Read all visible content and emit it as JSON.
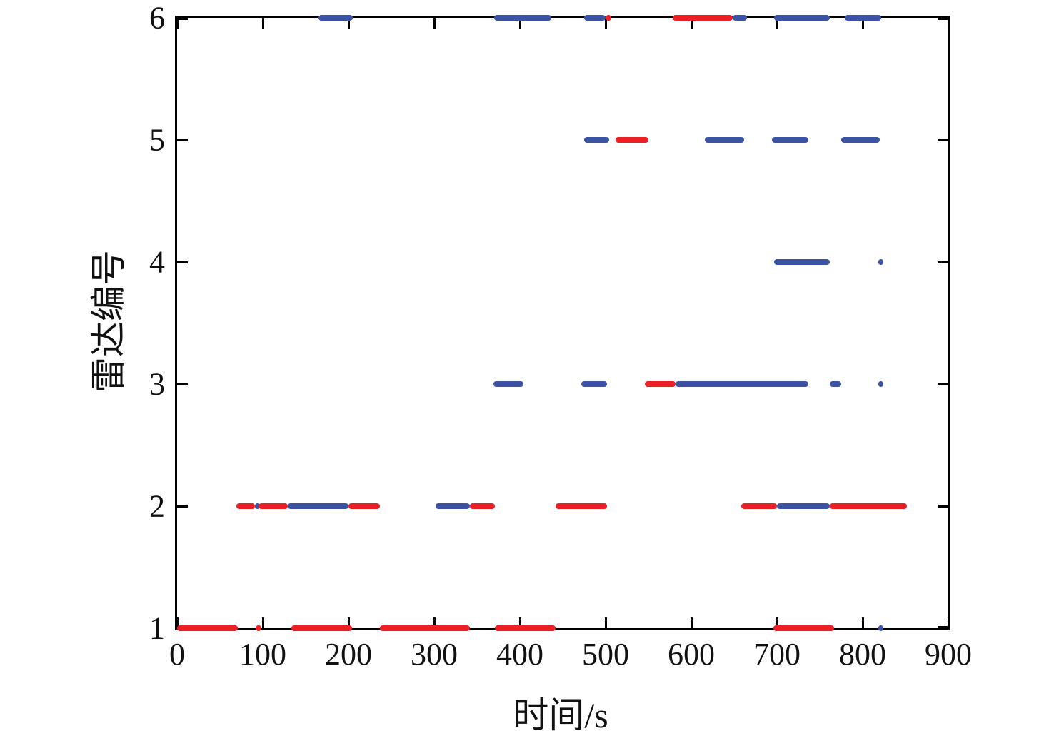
{
  "chart_data": {
    "type": "scatter",
    "title": "",
    "xlabel": "时间/s",
    "ylabel": "雷达编号",
    "xlim": [
      0,
      900
    ],
    "ylim": [
      1,
      6
    ],
    "x_ticks": [
      0,
      100,
      200,
      300,
      400,
      500,
      600,
      700,
      800,
      900
    ],
    "y_ticks": [
      1,
      2,
      3,
      4,
      5,
      6
    ],
    "grid": false,
    "legend": "none",
    "colors": {
      "blue": "#3a53a4",
      "red": "#ec2024"
    },
    "series_note": "horizontal occupancy segments per radar id; color = blue or red",
    "segments": [
      {
        "y": 6,
        "start": 165,
        "end": 205,
        "color": "blue"
      },
      {
        "y": 6,
        "start": 370,
        "end": 437,
        "color": "blue"
      },
      {
        "y": 6,
        "start": 475,
        "end": 500,
        "color": "blue"
      },
      {
        "y": 6,
        "start": 500,
        "end": 507,
        "color": "red"
      },
      {
        "y": 6,
        "start": 578,
        "end": 648,
        "color": "red"
      },
      {
        "y": 6,
        "start": 648,
        "end": 665,
        "color": "blue"
      },
      {
        "y": 6,
        "start": 697,
        "end": 762,
        "color": "blue"
      },
      {
        "y": 6,
        "start": 779,
        "end": 822,
        "color": "blue"
      },
      {
        "y": 5,
        "start": 475,
        "end": 504,
        "color": "blue"
      },
      {
        "y": 5,
        "start": 512,
        "end": 550,
        "color": "red"
      },
      {
        "y": 5,
        "start": 616,
        "end": 662,
        "color": "blue"
      },
      {
        "y": 5,
        "start": 694,
        "end": 737,
        "color": "blue"
      },
      {
        "y": 5,
        "start": 775,
        "end": 820,
        "color": "blue"
      },
      {
        "y": 4,
        "start": 697,
        "end": 762,
        "color": "blue"
      },
      {
        "y": 4,
        "start": 818,
        "end": 821,
        "color": "blue"
      },
      {
        "y": 3,
        "start": 369,
        "end": 404,
        "color": "blue"
      },
      {
        "y": 3,
        "start": 472,
        "end": 502,
        "color": "blue"
      },
      {
        "y": 3,
        "start": 546,
        "end": 582,
        "color": "red"
      },
      {
        "y": 3,
        "start": 582,
        "end": 737,
        "color": "blue"
      },
      {
        "y": 3,
        "start": 762,
        "end": 775,
        "color": "blue"
      },
      {
        "y": 3,
        "start": 818,
        "end": 821,
        "color": "blue"
      },
      {
        "y": 2,
        "start": 69,
        "end": 91,
        "color": "red"
      },
      {
        "y": 2,
        "start": 91,
        "end": 95,
        "color": "blue"
      },
      {
        "y": 2,
        "start": 95,
        "end": 129,
        "color": "red"
      },
      {
        "y": 2,
        "start": 129,
        "end": 200,
        "color": "blue"
      },
      {
        "y": 2,
        "start": 200,
        "end": 237,
        "color": "red"
      },
      {
        "y": 2,
        "start": 302,
        "end": 342,
        "color": "blue"
      },
      {
        "y": 2,
        "start": 342,
        "end": 371,
        "color": "red"
      },
      {
        "y": 2,
        "start": 442,
        "end": 502,
        "color": "red"
      },
      {
        "y": 2,
        "start": 658,
        "end": 700,
        "color": "red"
      },
      {
        "y": 2,
        "start": 700,
        "end": 762,
        "color": "blue"
      },
      {
        "y": 2,
        "start": 762,
        "end": 852,
        "color": "red"
      },
      {
        "y": 1,
        "start": 0,
        "end": 71,
        "color": "red"
      },
      {
        "y": 1,
        "start": 92,
        "end": 98,
        "color": "red"
      },
      {
        "y": 1,
        "start": 133,
        "end": 204,
        "color": "red"
      },
      {
        "y": 1,
        "start": 237,
        "end": 342,
        "color": "red"
      },
      {
        "y": 1,
        "start": 371,
        "end": 442,
        "color": "red"
      },
      {
        "y": 1,
        "start": 696,
        "end": 767,
        "color": "red"
      },
      {
        "y": 1,
        "start": 818,
        "end": 821,
        "color": "blue"
      }
    ]
  }
}
